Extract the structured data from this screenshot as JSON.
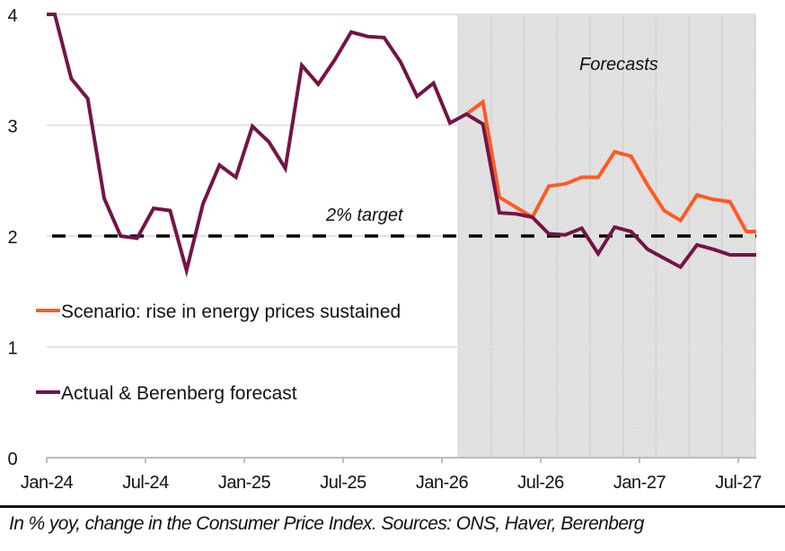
{
  "chart_data": {
    "type": "line",
    "title": "",
    "xlabel": "",
    "ylabel": "",
    "ylim": [
      0,
      4
    ],
    "yticks": [
      "0",
      "1",
      "2",
      "3",
      "4"
    ],
    "ytick_values": [
      0,
      1,
      2,
      3,
      4
    ],
    "xtick_labels": [
      "Jan-24",
      "Jul-24",
      "Jan-25",
      "Jul-25",
      "Jan-26",
      "Jul-26",
      "Jan-27",
      "Jul-27"
    ],
    "grid": "horizontal",
    "x": [
      "Jan-24",
      "Feb-24",
      "Mar-24",
      "Apr-24",
      "May-24",
      "Jun-24",
      "Jul-24",
      "Aug-24",
      "Sep-24",
      "Oct-24",
      "Nov-24",
      "Dec-24",
      "Jan-25",
      "Feb-25",
      "Mar-25",
      "Apr-25",
      "May-25",
      "Jun-25",
      "Jul-25",
      "Aug-25",
      "Sep-25",
      "Oct-25",
      "Nov-25",
      "Dec-25",
      "Jan-26",
      "Feb-26",
      "Mar-26",
      "Apr-26",
      "May-26",
      "Jun-26",
      "Jul-26",
      "Aug-26",
      "Sep-26",
      "Oct-26",
      "Nov-26",
      "Dec-26",
      "Jan-27",
      "Feb-27",
      "Mar-27",
      "Apr-27",
      "May-27",
      "Jun-27",
      "Jul-27"
    ],
    "series": [
      {
        "name": "Scenario: rise in energy prices sustained",
        "color": "#ff5a24",
        "start_index": 25,
        "values": [
          null,
          null,
          null,
          null,
          null,
          null,
          null,
          null,
          null,
          null,
          null,
          null,
          null,
          null,
          null,
          null,
          null,
          null,
          null,
          null,
          null,
          null,
          null,
          null,
          null,
          3.1,
          3.21,
          2.35,
          2.26,
          2.17,
          2.45,
          2.47,
          2.53,
          2.53,
          2.76,
          2.72,
          2.46,
          2.23,
          2.14,
          2.37,
          2.33,
          2.31,
          2.04
        ]
      },
      {
        "name": "Actual & Berenberg forecast",
        "color": "#731448",
        "values": [
          4.0,
          3.42,
          3.24,
          2.34,
          2.0,
          1.98,
          2.25,
          2.23,
          1.69,
          2.29,
          2.64,
          2.53,
          2.99,
          2.85,
          2.61,
          3.54,
          3.37,
          3.59,
          3.84,
          3.8,
          3.79,
          3.57,
          3.26,
          3.38,
          3.02,
          3.1,
          3.01,
          2.21,
          2.2,
          2.17,
          2.02,
          2.01,
          2.07,
          1.84,
          2.08,
          2.04,
          1.88,
          1.8,
          1.72,
          1.92,
          1.88,
          1.83,
          1.83
        ]
      }
    ],
    "reference_line": {
      "label": "2% target",
      "value": 2,
      "style": "dashed",
      "color": "#000000"
    },
    "shaded_region": {
      "label": "Forecasts",
      "from": "Feb-26",
      "to": "Aug-27",
      "color": "#dedede"
    },
    "legend": {
      "placement": "left-middle",
      "entries": [
        {
          "label": "Scenario: rise in energy prices sustained",
          "color": "#ff5a24"
        },
        {
          "label": "Actual & Berenberg forecast",
          "color": "#731448"
        }
      ]
    },
    "caption": "In % yoy, change in the Consumer Price Index. Sources: ONS, Haver, Berenberg"
  }
}
